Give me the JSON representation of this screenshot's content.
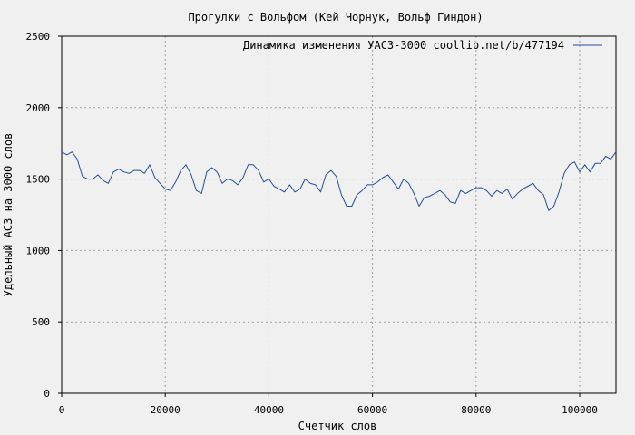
{
  "chart_data": {
    "type": "line",
    "title": "Прогулки с Вольфом (Кей Чорнук, Вольф Гиндон)",
    "xlabel": "Счетчик слов",
    "ylabel": "Удельный АСЗ на 3000 слов",
    "xlim": [
      0,
      107000
    ],
    "ylim": [
      0,
      2500
    ],
    "xticks": [
      0,
      20000,
      40000,
      60000,
      80000,
      100000
    ],
    "yticks": [
      0,
      500,
      1000,
      1500,
      2000,
      2500
    ],
    "grid": true,
    "legend_position": "top-right",
    "colors": {
      "line": "#1f4fa0",
      "background": "#f0f0f0",
      "grid": "#a0a0a0"
    },
    "series": [
      {
        "name": "Динамика изменения УАСЗ-3000  coollib.net/b/477194",
        "x": [
          0,
          1000,
          2000,
          3000,
          4000,
          5000,
          6000,
          7000,
          8000,
          9000,
          10000,
          11000,
          12000,
          13000,
          14000,
          15000,
          16000,
          17000,
          18000,
          19000,
          20000,
          21000,
          22000,
          23000,
          24000,
          25000,
          26000,
          27000,
          28000,
          29000,
          30000,
          31000,
          32000,
          33000,
          34000,
          35000,
          36000,
          37000,
          38000,
          39000,
          40000,
          41000,
          42000,
          43000,
          44000,
          45000,
          46000,
          47000,
          48000,
          49000,
          50000,
          51000,
          52000,
          53000,
          54000,
          55000,
          56000,
          57000,
          58000,
          59000,
          60000,
          61000,
          62000,
          63000,
          64000,
          65000,
          66000,
          67000,
          68000,
          69000,
          70000,
          71000,
          72000,
          73000,
          74000,
          75000,
          76000,
          77000,
          78000,
          79000,
          80000,
          81000,
          82000,
          83000,
          84000,
          85000,
          86000,
          87000,
          88000,
          89000,
          90000,
          91000,
          92000,
          93000,
          94000,
          95000,
          96000,
          97000,
          98000,
          99000,
          100000,
          101000,
          102000,
          103000,
          104000,
          105000,
          106000,
          107000
        ],
        "y": [
          1690,
          1670,
          1690,
          1640,
          1520,
          1500,
          1500,
          1530,
          1490,
          1470,
          1550,
          1570,
          1550,
          1540,
          1560,
          1560,
          1540,
          1600,
          1510,
          1470,
          1430,
          1420,
          1480,
          1560,
          1600,
          1530,
          1420,
          1400,
          1550,
          1580,
          1550,
          1470,
          1500,
          1490,
          1460,
          1510,
          1600,
          1600,
          1560,
          1480,
          1500,
          1450,
          1430,
          1410,
          1460,
          1410,
          1430,
          1500,
          1470,
          1460,
          1410,
          1530,
          1560,
          1520,
          1390,
          1310,
          1310,
          1390,
          1420,
          1460,
          1460,
          1480,
          1510,
          1530,
          1480,
          1430,
          1500,
          1470,
          1400,
          1310,
          1370,
          1380,
          1400,
          1420,
          1390,
          1340,
          1330,
          1420,
          1400,
          1420,
          1440,
          1440,
          1420,
          1380,
          1420,
          1400,
          1430,
          1360,
          1400,
          1430,
          1450,
          1470,
          1420,
          1390,
          1280,
          1310,
          1410,
          1540,
          1600,
          1620,
          1550,
          1600,
          1550,
          1610,
          1610,
          1660,
          1640,
          1690
        ]
      }
    ]
  }
}
